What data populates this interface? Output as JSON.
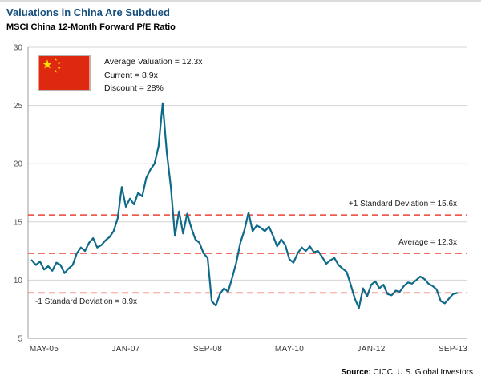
{
  "header": {
    "title": "Valuations in China Are Subdued",
    "subtitle": "MSCI China 12-Month Forward P/E Ratio"
  },
  "legend": {
    "flag_icon": "china-flag",
    "lines": [
      "Average Valuation = 12.3x",
      "Current = 8.9x",
      "Discount = 28%"
    ]
  },
  "annotations": {
    "plus_sd": "+1 Standard Deviation = 15.6x",
    "average": "Average = 12.3x",
    "minus_sd": "-1 Standard Deviation = 8.9x"
  },
  "source": {
    "label": "Source:",
    "text": " CICC, U.S. Global Investors"
  },
  "colors": {
    "title": "#154e7d",
    "line": "#0f6a8a",
    "reference": "#ec4333",
    "grid": "#d4d4d4",
    "axis": "#9b9b9b",
    "flag_red": "#de2910",
    "flag_gold": "#ffde00"
  },
  "chart_data": {
    "type": "line",
    "title": "MSCI China 12-Month Forward P/E Ratio",
    "xlabel": "",
    "ylabel": "",
    "ylim": [
      5,
      30
    ],
    "y_ticks": [
      5,
      10,
      15,
      20,
      25,
      30
    ],
    "grid": true,
    "legend_position": "none",
    "x_start": "2005-02",
    "x_frequency": "monthly",
    "x_tick_labels": [
      "MAY-05",
      "JAN-07",
      "SEP-08",
      "MAY-10",
      "JAN-12",
      "SEP-13"
    ],
    "x_tick_indices": [
      3,
      23,
      43,
      63,
      83,
      103
    ],
    "reference_lines": [
      {
        "label": "+1 Standard Deviation",
        "value": 15.6
      },
      {
        "label": "Average",
        "value": 12.3
      },
      {
        "label": "-1 Standard Deviation",
        "value": 8.9
      }
    ],
    "series": [
      {
        "name": "MSCI China 12-Month Forward P/E",
        "values": [
          11.7,
          11.3,
          11.6,
          10.9,
          11.2,
          10.8,
          11.5,
          11.3,
          10.6,
          11.0,
          11.3,
          12.3,
          12.8,
          12.5,
          13.2,
          13.6,
          12.8,
          13.0,
          13.4,
          13.7,
          14.2,
          15.3,
          18.0,
          16.3,
          17.0,
          16.5,
          17.5,
          17.2,
          18.8,
          19.5,
          20.0,
          21.5,
          25.2,
          21.0,
          18.0,
          13.8,
          15.9,
          14.0,
          15.7,
          14.5,
          13.5,
          13.2,
          12.3,
          11.9,
          8.2,
          7.8,
          8.8,
          9.3,
          9.0,
          10.2,
          11.5,
          13.2,
          14.3,
          15.8,
          14.2,
          14.7,
          14.5,
          14.2,
          14.6,
          13.8,
          12.9,
          13.5,
          13.0,
          11.8,
          11.5,
          12.3,
          12.8,
          12.5,
          12.9,
          12.4,
          12.5,
          12.0,
          11.4,
          11.7,
          11.9,
          11.3,
          11.0,
          10.7,
          9.6,
          8.4,
          7.6,
          9.3,
          8.6,
          9.6,
          9.9,
          9.3,
          9.6,
          8.8,
          8.7,
          9.1,
          9.0,
          9.5,
          9.8,
          9.7,
          10.0,
          10.3,
          10.1,
          9.7,
          9.5,
          9.2,
          8.2,
          8.0,
          8.4,
          8.8,
          8.9
        ]
      }
    ]
  }
}
